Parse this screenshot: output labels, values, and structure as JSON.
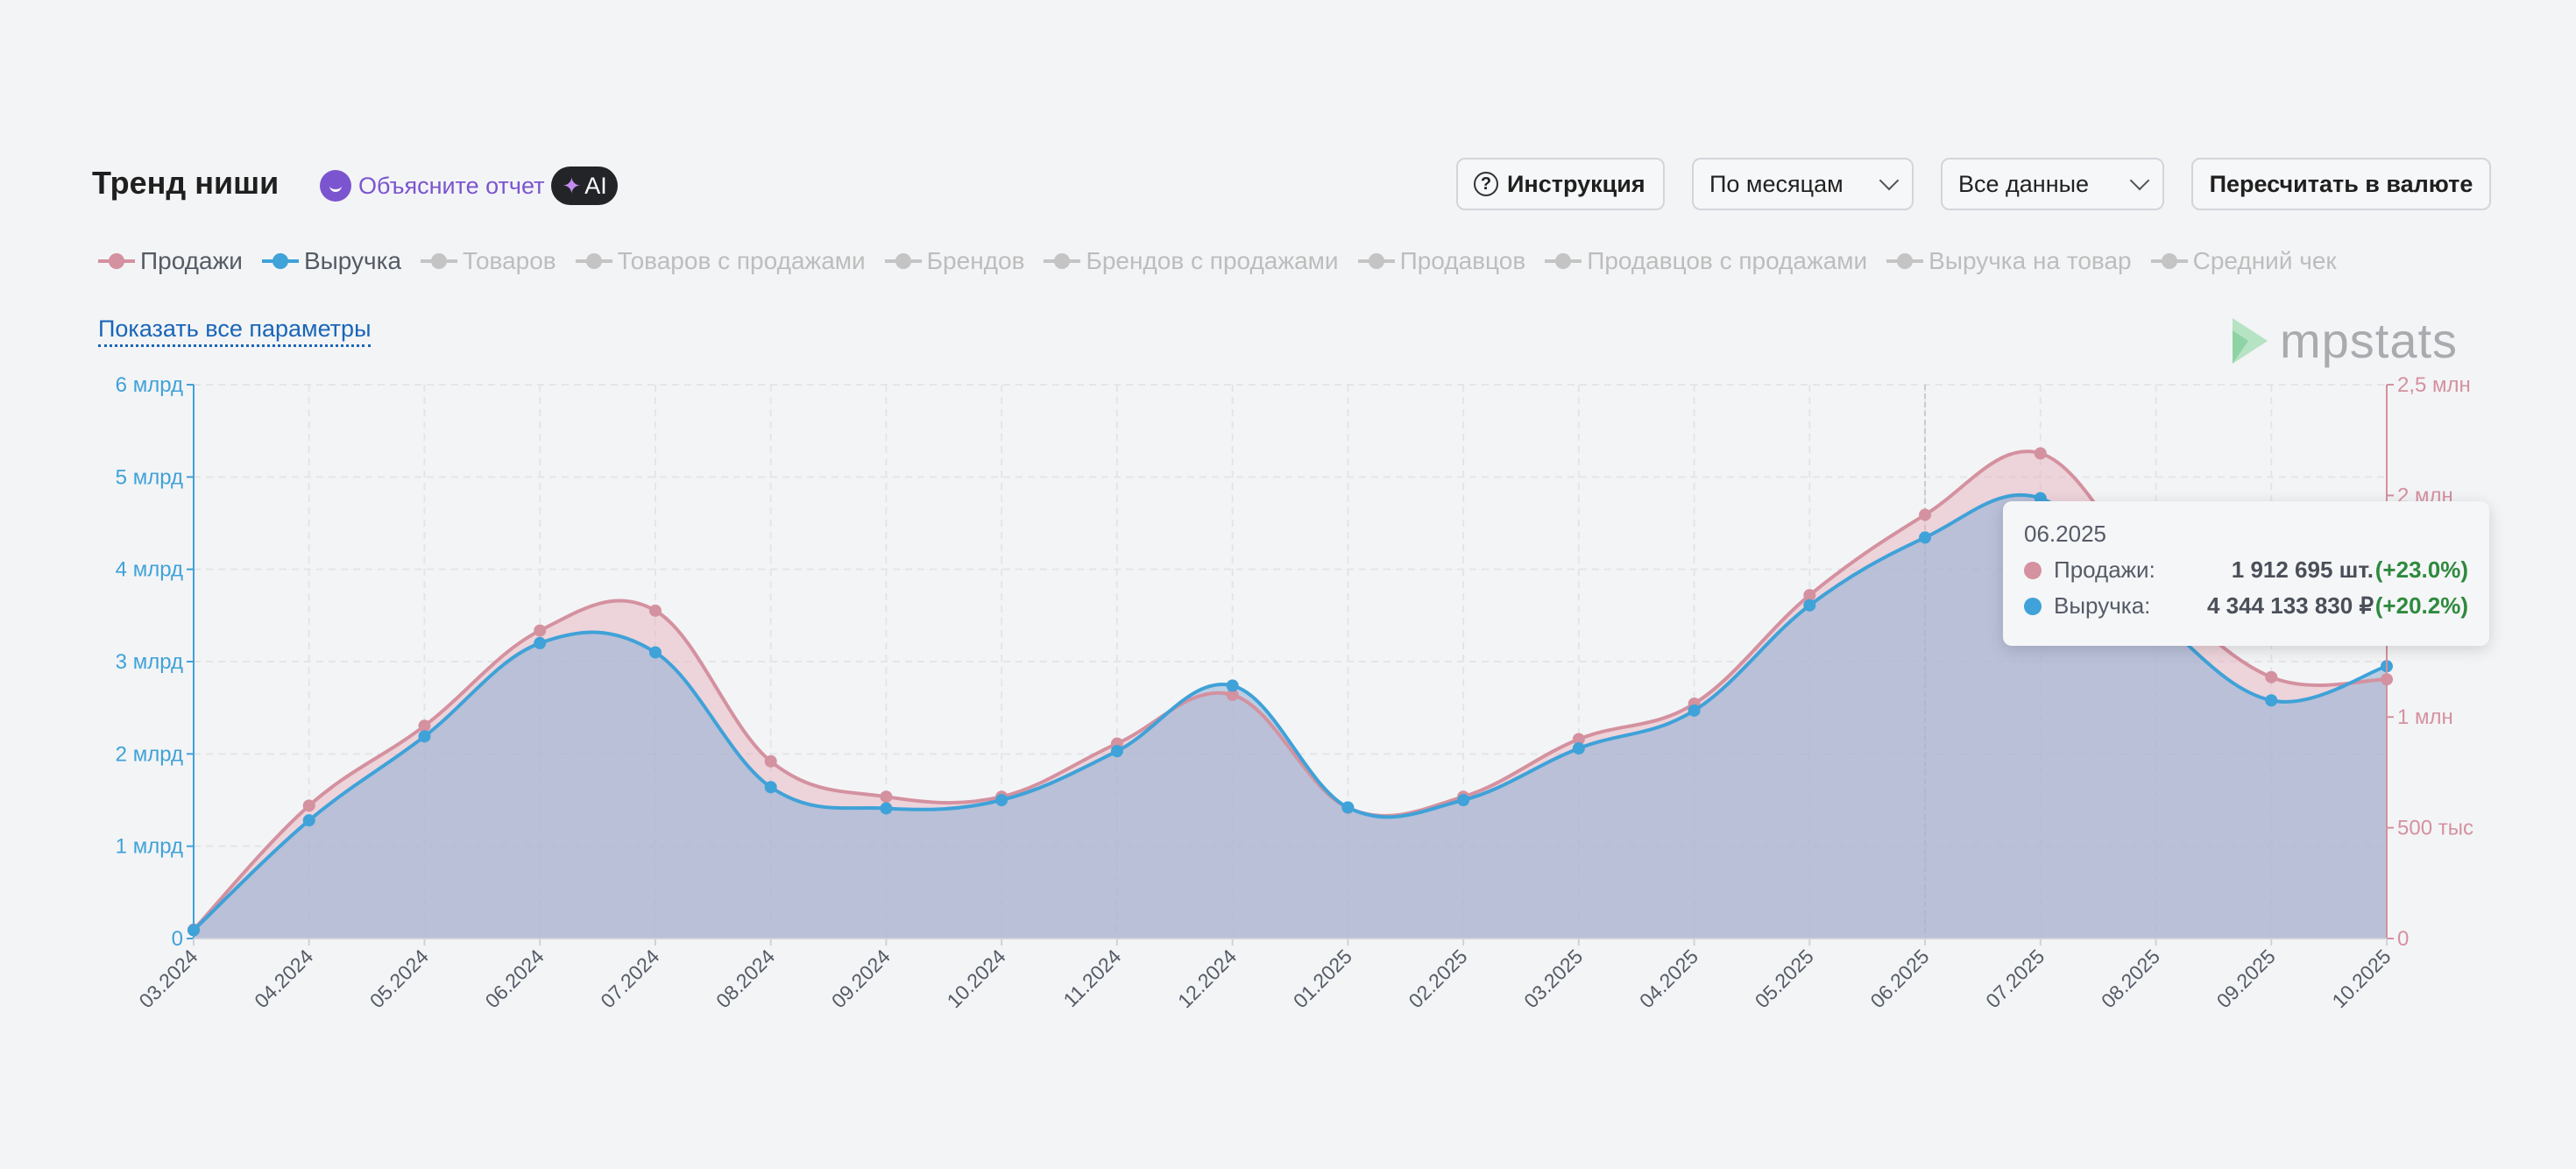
{
  "header": {
    "title": "Тренд ниши",
    "ai_explain_label": "Объясните отчет",
    "ai_badge": "AI",
    "instruction_label": "Инструкция",
    "period_select": "По месяцам",
    "data_select": "Все данные",
    "recalc_label": "Пересчитать в валюте"
  },
  "legend": [
    {
      "label": "Продажи",
      "active": true,
      "color": "#d4919f"
    },
    {
      "label": "Выручка",
      "active": true,
      "color": "#3fa2d8"
    },
    {
      "label": "Товаров",
      "active": false,
      "color": "#c4c4c4"
    },
    {
      "label": "Товаров с продажами",
      "active": false,
      "color": "#c4c4c4"
    },
    {
      "label": "Брендов",
      "active": false,
      "color": "#c4c4c4"
    },
    {
      "label": "Брендов с продажами",
      "active": false,
      "color": "#c4c4c4"
    },
    {
      "label": "Продавцов",
      "active": false,
      "color": "#c4c4c4"
    },
    {
      "label": "Продавцов с продажами",
      "active": false,
      "color": "#c4c4c4"
    },
    {
      "label": "Выручка на товар",
      "active": false,
      "color": "#c4c4c4"
    },
    {
      "label": "Средний чек",
      "active": false,
      "color": "#c4c4c4"
    }
  ],
  "show_all_label": "Показать все параметры",
  "logo_text": "mpstats",
  "tooltip": {
    "date": "06.2025",
    "rows": [
      {
        "label": "Продажи:",
        "value": "1 912 695 шт.",
        "change": "(+23.0%)",
        "color": "#d4919f"
      },
      {
        "label": "Выручка:",
        "value": "4 344 133 830 ₽",
        "change": "(+20.2%)",
        "color": "#3fa2d8"
      }
    ]
  },
  "chart_data": {
    "type": "area",
    "title": "Тренд ниши",
    "categories": [
      "03.2024",
      "04.2024",
      "05.2024",
      "06.2024",
      "07.2024",
      "08.2024",
      "09.2024",
      "10.2024",
      "11.2024",
      "12.2024",
      "01.2025",
      "02.2025",
      "03.2025",
      "04.2025",
      "05.2025",
      "06.2025",
      "07.2025",
      "08.2025",
      "09.2025",
      "10.2025"
    ],
    "series": [
      {
        "name": "Продажи",
        "axis": "right",
        "unit": "шт.",
        "color": "#d4919f",
        "values": [
          40000,
          600000,
          960000,
          1390000,
          1480000,
          800000,
          640000,
          640000,
          880000,
          1100000,
          590000,
          640000,
          900000,
          1060000,
          1550000,
          1912695,
          2190000,
          1600000,
          1180000,
          1170000
        ]
      },
      {
        "name": "Выручка",
        "axis": "left",
        "unit": "₽",
        "color": "#3fa2d8",
        "values": [
          90000000,
          1280000000,
          2190000000,
          3200000000,
          3100000000,
          1640000000,
          1410000000,
          1500000000,
          2030000000,
          2740000000,
          1420000000,
          1500000000,
          2060000000,
          2470000000,
          3610000000,
          4344133830,
          4770000000,
          3500000000,
          2580000000,
          2950000000
        ]
      }
    ],
    "left_axis": {
      "ylim": [
        0,
        6000000000
      ],
      "ticks": [
        0,
        1000000000,
        2000000000,
        3000000000,
        4000000000,
        5000000000,
        6000000000
      ],
      "tick_labels": [
        "0",
        "1 млрд",
        "2 млрд",
        "3 млрд",
        "4 млрд",
        "5 млрд",
        "6 млрд"
      ],
      "color": "#3fa2d8"
    },
    "right_axis": {
      "ylim": [
        0,
        2500000
      ],
      "ticks": [
        0,
        500000,
        1000000,
        1500000,
        2000000,
        2500000
      ],
      "tick_labels": [
        "0",
        "500 тыс",
        "1 млн",
        "",
        "2 млн",
        "2,5 млн"
      ],
      "color": "#d4919f"
    },
    "highlighted_category": "06.2025",
    "grid": true
  }
}
